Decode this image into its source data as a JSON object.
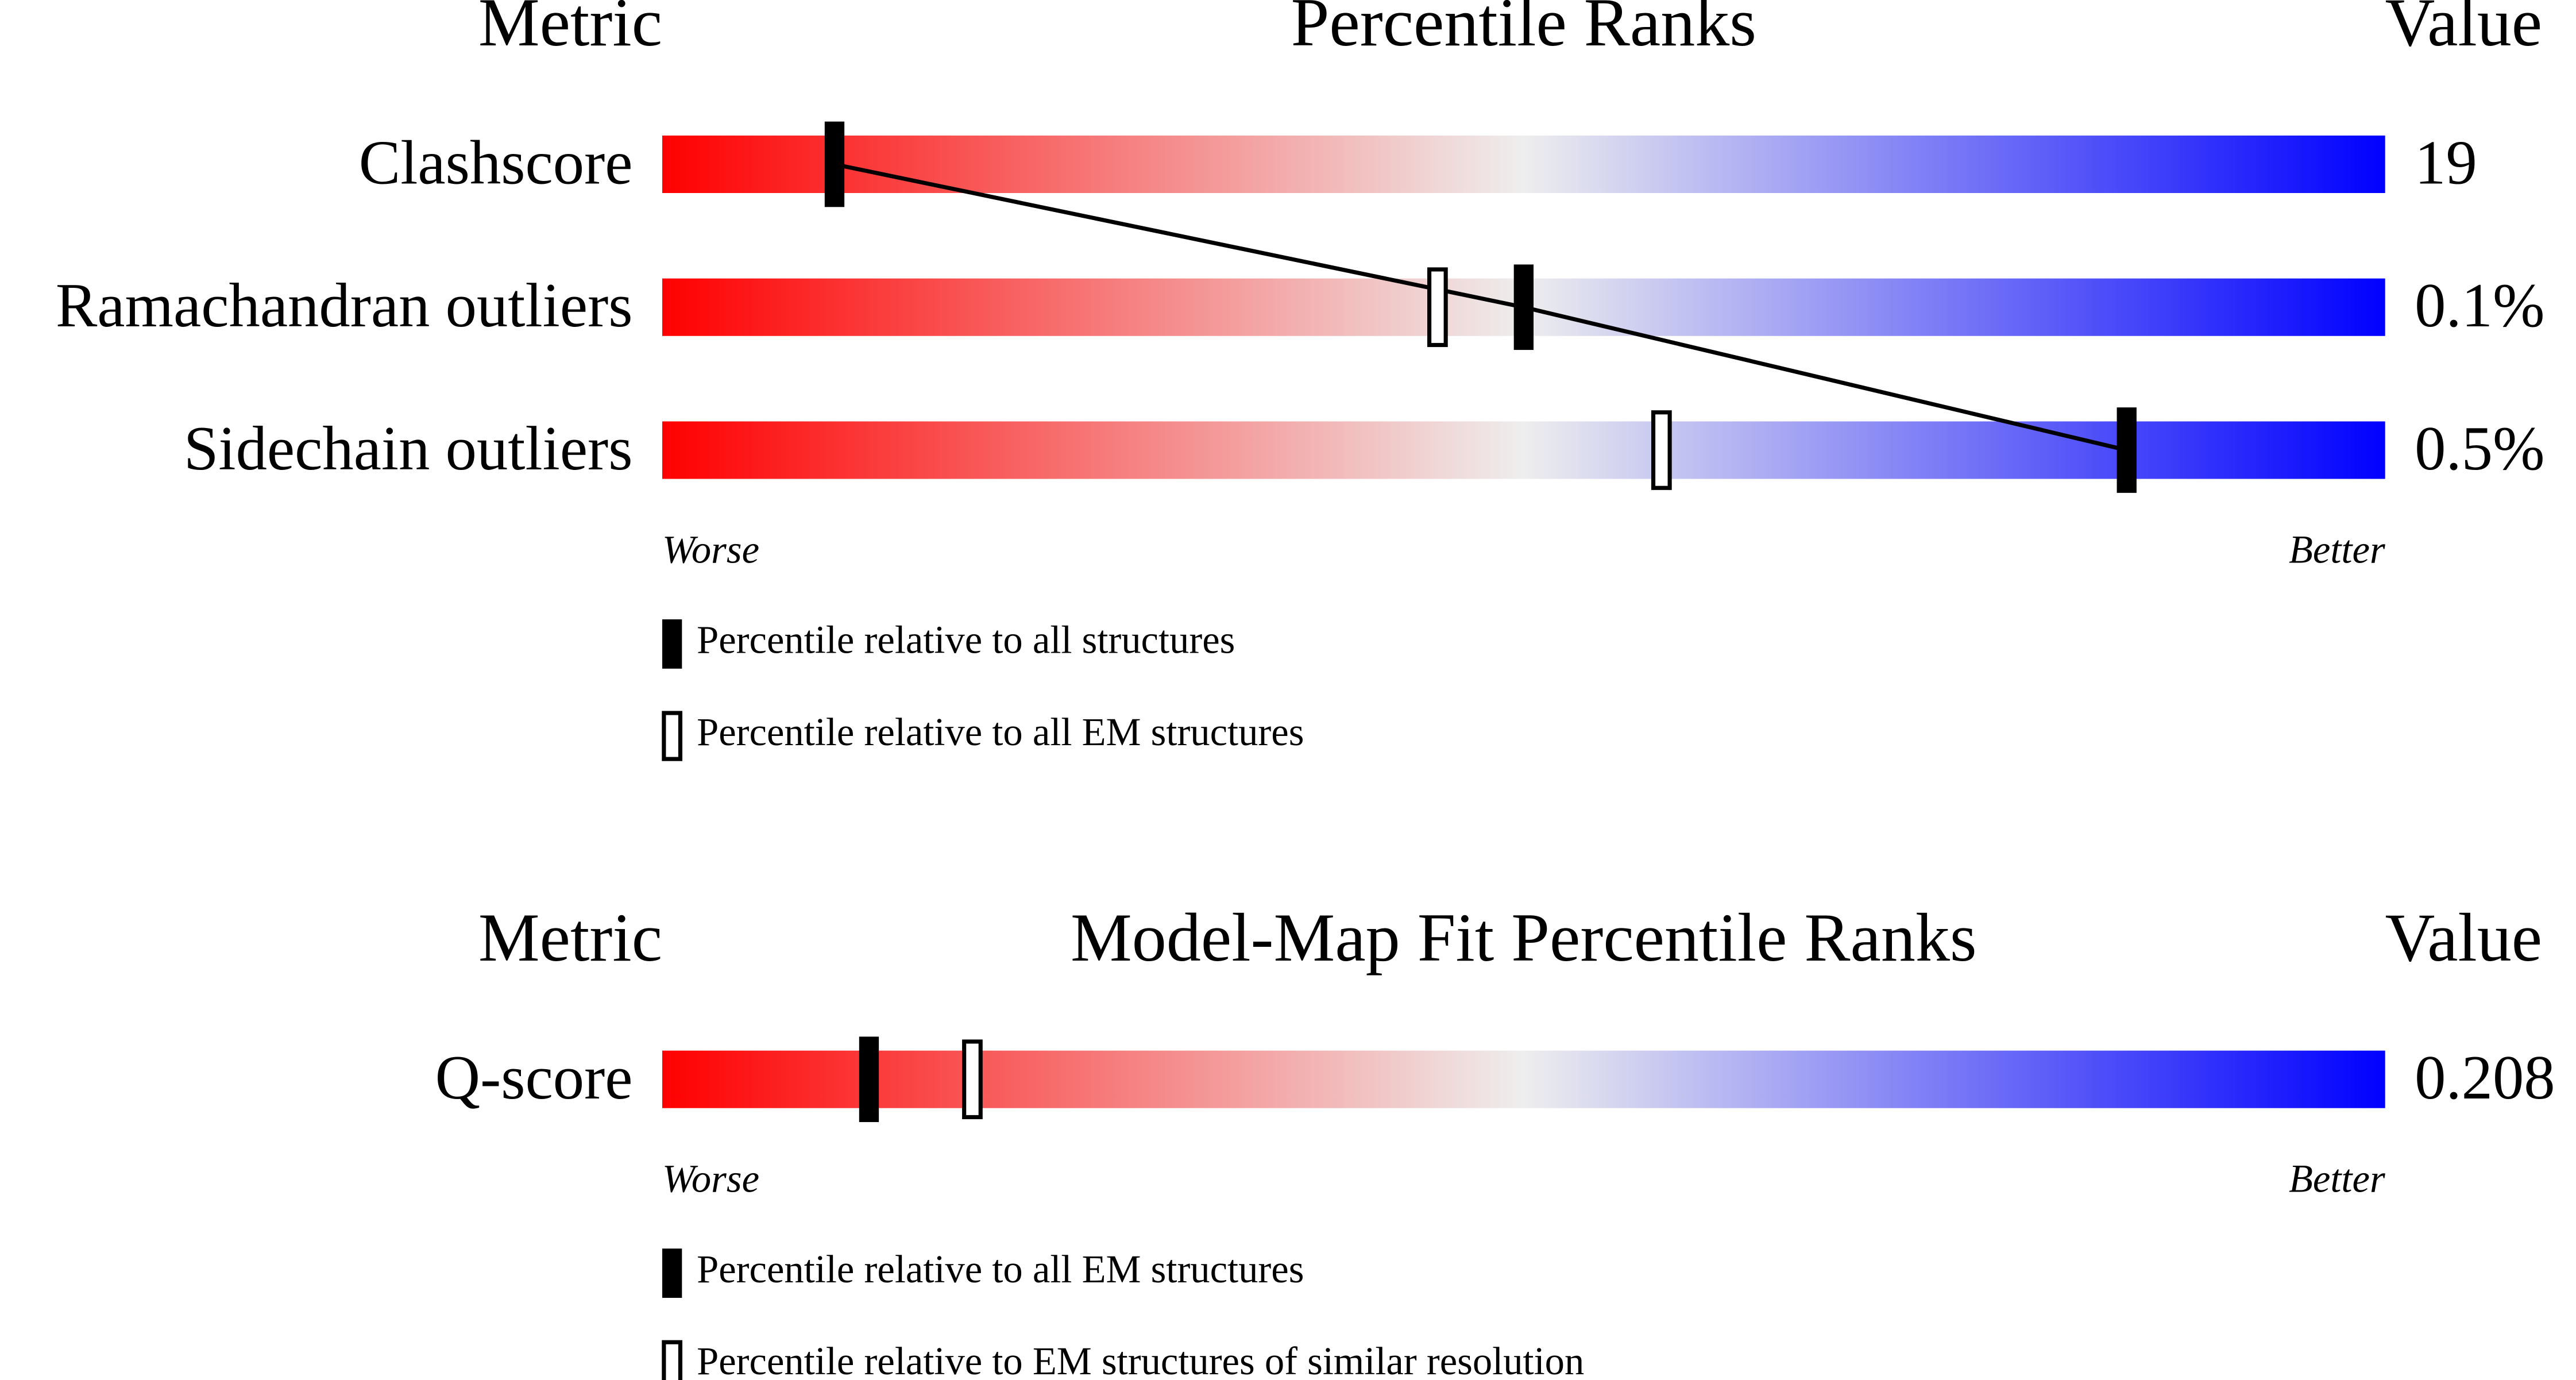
{
  "chart_data": [
    {
      "type": "slider",
      "title": "Percentile Ranks",
      "metric_header": "Metric",
      "value_header": "Value",
      "xlim": [
        0,
        100
      ],
      "worse_label": "Worse",
      "better_label": "Better",
      "gradient": [
        "#ff0000",
        "#eeeeee",
        "#0000ff"
      ],
      "categories": [
        "Clashscore",
        "Ramachandran outliers",
        "Sidechain outliers"
      ],
      "value_labels": [
        "19",
        "0.1%",
        "0.5%"
      ],
      "series": [
        {
          "name": "Percentile relative to all structures",
          "style": "filled",
          "color": "#000000",
          "connect": true,
          "values": [
            10,
            50,
            85
          ]
        },
        {
          "name": "Percentile relative to all EM structures",
          "style": "open",
          "color": "#000000",
          "values": [
            null,
            45,
            58
          ]
        }
      ]
    },
    {
      "type": "slider",
      "title": "Model-Map Fit Percentile Ranks",
      "metric_header": "Metric",
      "value_header": "Value",
      "xlim": [
        0,
        100
      ],
      "worse_label": "Worse",
      "better_label": "Better",
      "gradient": [
        "#ff0000",
        "#eeeeee",
        "#0000ff"
      ],
      "categories": [
        "Q-score"
      ],
      "value_labels": [
        "0.208"
      ],
      "series": [
        {
          "name": "Percentile relative to all EM structures",
          "style": "filled",
          "color": "#000000",
          "values": [
            12
          ]
        },
        {
          "name": "Percentile relative to EM structures of similar resolution",
          "style": "open",
          "color": "#000000",
          "values": [
            18
          ]
        }
      ]
    }
  ]
}
